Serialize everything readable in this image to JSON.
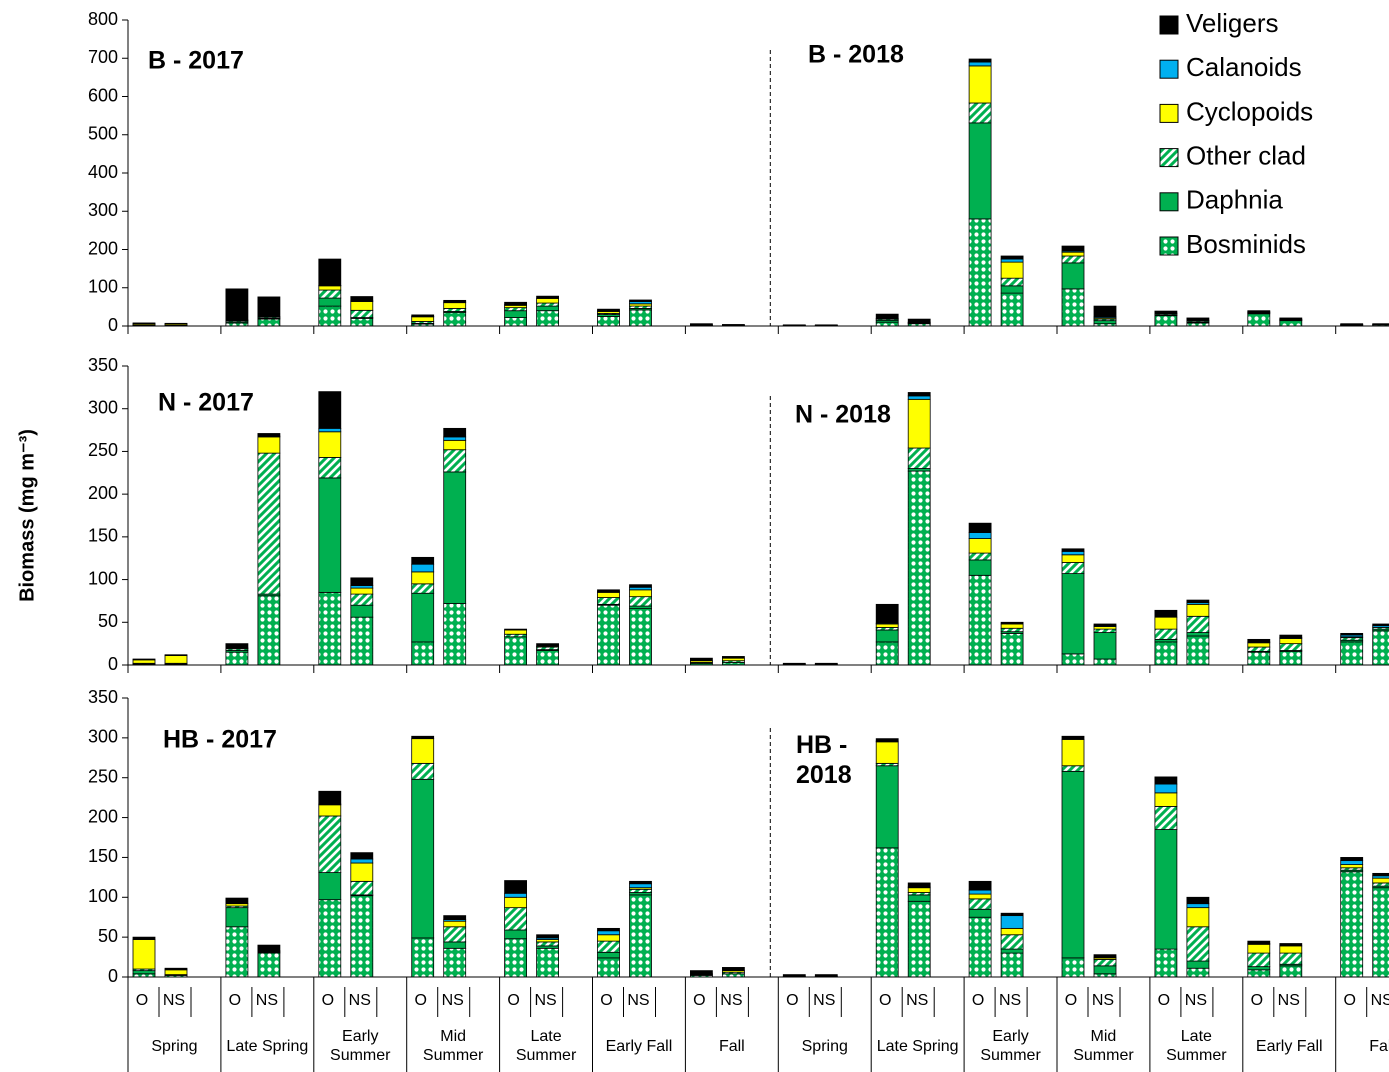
{
  "chart_data": [
    {
      "type": "bar",
      "stacked": true,
      "legend": "upper right",
      "annotations": [
        "B - 2017",
        "B - 2018"
      ],
      "ylim": [
        0,
        800
      ],
      "yticks": [
        0,
        100,
        200,
        300,
        400,
        500,
        600,
        700,
        800
      ],
      "series": [
        {
          "name": "Bosminids",
          "color": "#00b050",
          "pattern": "dots",
          "values": [
            2,
            2,
            8,
            18,
            52,
            20,
            5,
            35,
            22,
            40,
            25,
            42,
            1,
            1,
            1,
            1,
            10,
            6,
            280,
            86,
            97,
            6,
            27,
            8,
            32,
            14,
            2,
            3
          ]
        },
        {
          "name": "Daphnia",
          "color": "#00b050",
          "pattern": "solid",
          "values": [
            0,
            0,
            3,
            2,
            21,
            2,
            2,
            3,
            18,
            12,
            5,
            4,
            0,
            0,
            0,
            0,
            5,
            1,
            251,
            19,
            68,
            8,
            2,
            2,
            2,
            1,
            0,
            0
          ]
        },
        {
          "name": "Other clad",
          "color": "#00b050",
          "pattern": "hatch",
          "values": [
            1,
            0,
            3,
            3,
            21,
            19,
            5,
            8,
            8,
            8,
            3,
            6,
            1,
            1,
            0,
            0,
            3,
            2,
            52,
            20,
            18,
            4,
            3,
            3,
            2,
            2,
            1,
            1
          ]
        },
        {
          "name": "Cyclopoids",
          "color": "#ffff00",
          "pattern": "solid",
          "values": [
            3,
            3,
            2,
            1,
            11,
            23,
            12,
            15,
            6,
            12,
            5,
            6,
            1,
            0,
            1,
            1,
            2,
            1,
            97,
            42,
            10,
            3,
            2,
            2,
            1,
            1,
            1,
            0
          ]
        },
        {
          "name": "Calanoids",
          "color": "#00b0f0",
          "pattern": "solid",
          "values": [
            0,
            0,
            0,
            0,
            1,
            2,
            1,
            2,
            2,
            0,
            2,
            6,
            0,
            0,
            0,
            0,
            0,
            0,
            10,
            8,
            3,
            3,
            0,
            0,
            0,
            0,
            0,
            0
          ]
        },
        {
          "name": "Veligers",
          "color": "#000000",
          "pattern": "solid",
          "values": [
            2,
            2,
            81,
            52,
            69,
            11,
            4,
            4,
            6,
            6,
            4,
            4,
            3,
            2,
            1,
            1,
            11,
            8,
            8,
            8,
            13,
            28,
            5,
            6,
            3,
            3,
            2,
            2
          ]
        }
      ]
    },
    {
      "type": "bar",
      "stacked": true,
      "ylabel": "Biomass (mg m⁻³)",
      "annotations": [
        "N - 2017",
        "N - 2018"
      ],
      "ylim": [
        0,
        350
      ],
      "yticks": [
        0,
        50,
        100,
        150,
        200,
        250,
        300,
        350
      ],
      "series": [
        {
          "values": [
            1,
            1,
            15,
            81,
            85,
            56,
            27,
            72,
            33,
            17,
            70,
            66,
            2,
            3,
            1,
            1,
            27,
            227,
            105,
            37,
            13,
            7,
            27,
            34,
            15,
            16,
            27,
            40
          ]
        },
        {
          "values": [
            0,
            0,
            2,
            2,
            134,
            14,
            57,
            154,
            0,
            1,
            1,
            3,
            0,
            0,
            0,
            0,
            14,
            3,
            18,
            2,
            94,
            31,
            3,
            4,
            1,
            1,
            2,
            2
          ]
        },
        {
          "values": [
            1,
            1,
            2,
            165,
            24,
            13,
            11,
            26,
            3,
            3,
            8,
            11,
            1,
            2,
            0,
            0,
            3,
            24,
            8,
            4,
            13,
            4,
            12,
            19,
            5,
            8,
            3,
            2
          ]
        },
        {
          "values": [
            4,
            9,
            1,
            19,
            30,
            7,
            14,
            11,
            5,
            1,
            6,
            8,
            2,
            3,
            0,
            0,
            4,
            57,
            17,
            5,
            9,
            3,
            14,
            14,
            5,
            6,
            1,
            0
          ]
        },
        {
          "values": [
            0,
            0,
            0,
            1,
            4,
            3,
            9,
            4,
            0,
            0,
            1,
            3,
            0,
            0,
            0,
            0,
            1,
            4,
            7,
            0,
            4,
            1,
            0,
            2,
            1,
            1,
            2,
            2
          ]
        },
        {
          "values": [
            1,
            1,
            5,
            3,
            43,
            9,
            8,
            10,
            1,
            3,
            2,
            3,
            3,
            2,
            1,
            1,
            22,
            4,
            11,
            2,
            3,
            2,
            8,
            3,
            3,
            3,
            2,
            2
          ]
        }
      ]
    },
    {
      "type": "bar",
      "stacked": true,
      "annotations": [
        "HB - 2017",
        "HB -\n2018"
      ],
      "ylim": [
        0,
        350
      ],
      "yticks": [
        0,
        50,
        100,
        150,
        200,
        250,
        300,
        350
      ],
      "categories": [
        "O",
        "NS",
        "O",
        "NS",
        "O",
        "NS",
        "O",
        "NS",
        "O",
        "NS",
        "O",
        "NS",
        "O",
        "NS",
        "O",
        "NS",
        "O",
        "NS",
        "O",
        "NS",
        "O",
        "NS",
        "O",
        "NS",
        "O",
        "NS",
        "O",
        "NS"
      ],
      "groups": [
        "Spring",
        "Late Spring",
        "Early\nSummer",
        "Mid\nSummer",
        "Late\nSummer",
        "Early Fall",
        "Fall",
        "Spring",
        "Late Spring",
        "Early\nSummer",
        "Mid\nSummer",
        "Late\nSummer",
        "Early Fall",
        "Fall"
      ],
      "series": [
        {
          "values": [
            4,
            2,
            63,
            30,
            97,
            102,
            49,
            36,
            48,
            36,
            24,
            103,
            2,
            4,
            1,
            1,
            162,
            95,
            75,
            30,
            24,
            4,
            35,
            11,
            9,
            14,
            132,
            112
          ]
        },
        {
          "values": [
            4,
            0,
            24,
            1,
            34,
            1,
            199,
            8,
            11,
            3,
            7,
            3,
            0,
            0,
            0,
            0,
            103,
            8,
            10,
            5,
            234,
            10,
            150,
            9,
            4,
            2,
            2,
            2
          ]
        },
        {
          "values": [
            2,
            1,
            2,
            1,
            71,
            17,
            20,
            19,
            28,
            5,
            14,
            4,
            1,
            2,
            0,
            0,
            3,
            3,
            13,
            18,
            7,
            8,
            29,
            43,
            17,
            14,
            3,
            4
          ]
        },
        {
          "values": [
            37,
            6,
            3,
            1,
            14,
            23,
            31,
            7,
            13,
            3,
            8,
            2,
            1,
            2,
            0,
            0,
            27,
            6,
            6,
            8,
            33,
            2,
            17,
            24,
            11,
            9,
            4,
            6
          ]
        },
        {
          "values": [
            0,
            0,
            0,
            0,
            1,
            5,
            0,
            2,
            5,
            2,
            5,
            5,
            0,
            0,
            0,
            0,
            1,
            1,
            5,
            16,
            0,
            1,
            11,
            5,
            1,
            0,
            5,
            3
          ]
        },
        {
          "values": [
            3,
            2,
            7,
            7,
            16,
            8,
            3,
            5,
            16,
            4,
            3,
            3,
            4,
            4,
            2,
            2,
            3,
            5,
            11,
            3,
            4,
            3,
            9,
            8,
            3,
            3,
            4,
            3
          ]
        }
      ]
    }
  ]
}
